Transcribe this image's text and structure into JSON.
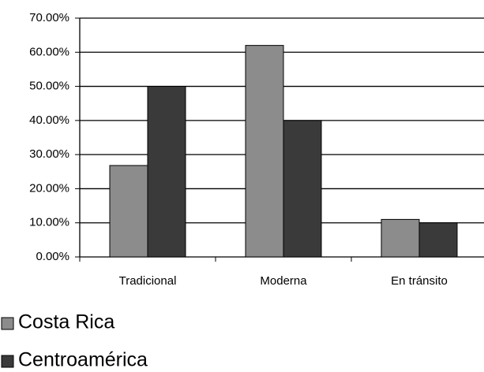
{
  "chart_data": {
    "type": "bar",
    "categories": [
      "Tradicional",
      "Moderna",
      "En tránsito"
    ],
    "series": [
      {
        "name": "Costa Rica",
        "color": "#8c8c8c",
        "values": [
          26.8,
          62,
          11
        ]
      },
      {
        "name": "Centroamérica",
        "color": "#3a3a3a",
        "values": [
          50,
          40,
          10
        ]
      }
    ],
    "ylim": [
      0,
      70
    ],
    "yticks": [
      {
        "value": 0,
        "label": "0.00%"
      },
      {
        "value": 10,
        "label": "10.00%"
      },
      {
        "value": 20,
        "label": "20.00%"
      },
      {
        "value": 30,
        "label": "30.00%"
      },
      {
        "value": 40,
        "label": "40.00%"
      },
      {
        "value": 50,
        "label": "50.00%"
      },
      {
        "value": 60,
        "label": "60.00%"
      },
      {
        "value": 70,
        "label": "70.00%"
      }
    ],
    "grid": true,
    "legend": "bottom-left"
  }
}
